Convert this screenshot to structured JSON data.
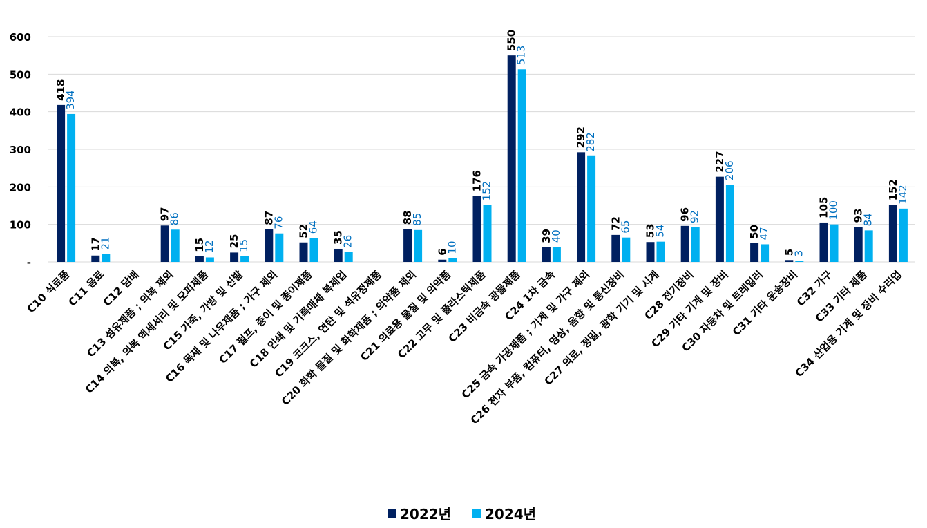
{
  "chart_data": {
    "type": "bar",
    "title": "",
    "xlabel": "",
    "ylabel": "",
    "ylim": [
      0,
      600
    ],
    "yticks": [
      0,
      100,
      200,
      300,
      400,
      500,
      600
    ],
    "ytick_labels": [
      "-",
      "100",
      "200",
      "300",
      "400",
      "500",
      "600"
    ],
    "grid": true,
    "legend_position": "bottom",
    "categories": [
      "C10 식료품",
      "C11 음료",
      "C12 담배",
      "C13 섬유제품 ; 의복 제외",
      "C14 의복, 의복 액세서리 및 모피제품",
      "C15 가죽, 가방 및 신발",
      "C16 목재 및 나무제품 ; 가구 제외",
      "C17 펄프, 종이 및 종이제품",
      "C18 인쇄 및 기록매체 복제업",
      "C19 코크스, 연탄 및 석유정제품",
      "C20 화학 물질 및 화학제품 ; 의약품 제외",
      "C21 의료용 물질 및 의약품",
      "C22 고무 및 플라스틱제품",
      "C23 비금속 광물제품",
      "C24 1차 금속",
      "C25 금속 가공제품 ; 기계 및 가구 제외",
      "C26 전자 부품, 컴퓨터, 영상, 음향 및 통신장비",
      "C27 의료, 정밀, 광학 기기 및 시계",
      "C28 전기장비",
      "C29 기타 기계 및 장비",
      "C30 자동차 및 트레일러",
      "C31 기타 운송장비",
      "C32 가구",
      "C33 기타 제품",
      "C34 산업용 기계 및 장비 수리업"
    ],
    "series": [
      {
        "name": "2022년",
        "color": "#002060",
        "label_color": "#000000",
        "values": [
          418,
          17,
          null,
          97,
          15,
          25,
          87,
          52,
          35,
          null,
          88,
          6,
          176,
          550,
          39,
          292,
          72,
          53,
          96,
          227,
          50,
          5,
          105,
          93,
          152
        ]
      },
      {
        "name": "2024년",
        "color": "#00B0F0",
        "label_color": "#0070C0",
        "values": [
          394,
          21,
          null,
          86,
          12,
          15,
          76,
          64,
          26,
          null,
          85,
          10,
          152,
          513,
          40,
          282,
          65,
          54,
          92,
          206,
          47,
          3,
          100,
          84,
          142
        ]
      }
    ]
  }
}
